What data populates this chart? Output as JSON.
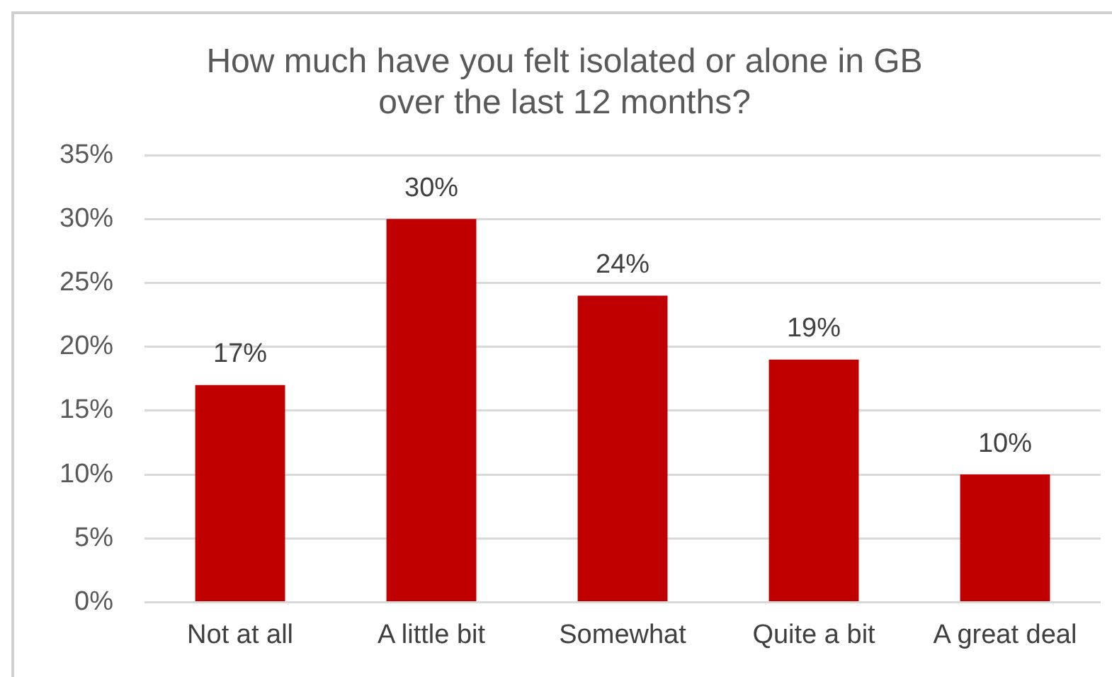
{
  "chart_data": {
    "type": "bar",
    "title": "How much have you felt isolated or alone in GB\nover the last 12 months?",
    "categories": [
      "Not at all",
      "A little bit",
      "Somewhat",
      "Quite a bit",
      "A great deal"
    ],
    "values": [
      17,
      30,
      24,
      19,
      10
    ],
    "color": "#c00000",
    "value_labels": [
      "17%",
      "30%",
      "24%",
      "19%",
      "10%"
    ],
    "ylim": [
      0,
      35
    ],
    "yticks": [
      {
        "value": 0,
        "label": "0%"
      },
      {
        "value": 5,
        "label": "5%"
      },
      {
        "value": 10,
        "label": "10%"
      },
      {
        "value": 15,
        "label": "15%"
      },
      {
        "value": 20,
        "label": "20%"
      },
      {
        "value": 25,
        "label": "25%"
      },
      {
        "value": 30,
        "label": "30%"
      },
      {
        "value": 35,
        "label": "35%"
      }
    ],
    "grid": "y",
    "legend": false
  }
}
